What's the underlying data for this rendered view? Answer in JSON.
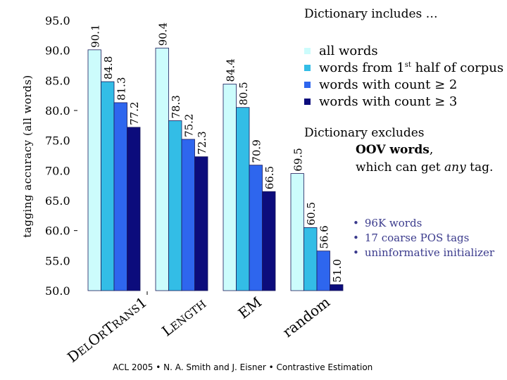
{
  "chart_data": {
    "type": "bar",
    "ylabel": "tagging accuracy (all words)",
    "ylim": [
      50,
      95
    ],
    "y_ticks": [
      "95.0",
      "90.0",
      "85.0",
      "80.0",
      "75.0",
      "70.0",
      "65.0",
      "60.0",
      "55.0",
      "50.0"
    ],
    "categories": [
      "DELORTRANS1",
      "LENGTH",
      "EM",
      "random"
    ],
    "series": [
      {
        "name": "all words",
        "color": "#ccfcfc",
        "values": [
          90.1,
          90.4,
          84.4,
          69.5
        ]
      },
      {
        "name": "words from 1st half of corpus",
        "color": "#33bde6",
        "values": [
          84.8,
          78.3,
          80.5,
          60.5
        ]
      },
      {
        "name": "words with count ≥ 2",
        "color": "#2e66ee",
        "values": [
          81.3,
          75.2,
          70.9,
          56.6
        ]
      },
      {
        "name": "words with count ≥ 3",
        "color": "#0c0c7c",
        "values": [
          77.2,
          72.3,
          66.5,
          51.0
        ]
      }
    ],
    "data_labels": [
      [
        "90.1",
        "84.8",
        "81.3",
        "77.2"
      ],
      [
        "90.4",
        "78.3",
        "75.2",
        "72.3"
      ],
      [
        "84.4",
        "80.5",
        "70.9",
        "66.5"
      ],
      [
        "69.5",
        "60.5",
        "56.6",
        "51.0"
      ]
    ],
    "legend_placement": "top-right"
  },
  "legend_title": "Dictionary includes …",
  "legend_labels": {
    "all": "all words",
    "first_half_pre": "words from 1",
    "first_half_sup": "st",
    "first_half_post": " half of corpus",
    "count2": "words with count ≥ 2",
    "count3": "words with count ≥ 3"
  },
  "note": {
    "line1": "Dictionary excludes",
    "line2_bold": "OOV words",
    "line2_tail": ",",
    "line3_pre": "which can get ",
    "line3_em": "any",
    "line3_post": " tag."
  },
  "facts": [
    "96K words",
    "17 coarse POS tags",
    "uninformative initializer"
  ],
  "bullet": "•",
  "footer": "ACL 2005  •  N. A. Smith and J. Eisner  •  Contrastive Estimation"
}
